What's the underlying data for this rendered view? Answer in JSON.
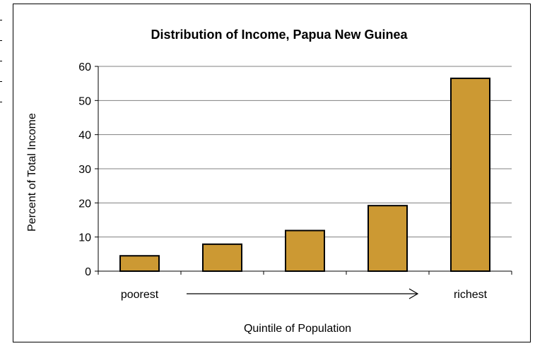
{
  "chart_data": {
    "type": "bar",
    "title": "Distribution of Income, Papua New Guinea",
    "xlabel": "Quintile of Population",
    "ylabel": "Percent of Total Income",
    "categories": [
      "poorest",
      "",
      "",
      "",
      "richest"
    ],
    "values": [
      4.5,
      7.9,
      11.9,
      19.2,
      56.5
    ],
    "ylim": [
      0,
      60
    ],
    "yticks": [
      0,
      10,
      20,
      30,
      40,
      50,
      60
    ],
    "grid": true,
    "bar_color": "#CC9933",
    "arrow_annotation": "poorest to richest"
  }
}
